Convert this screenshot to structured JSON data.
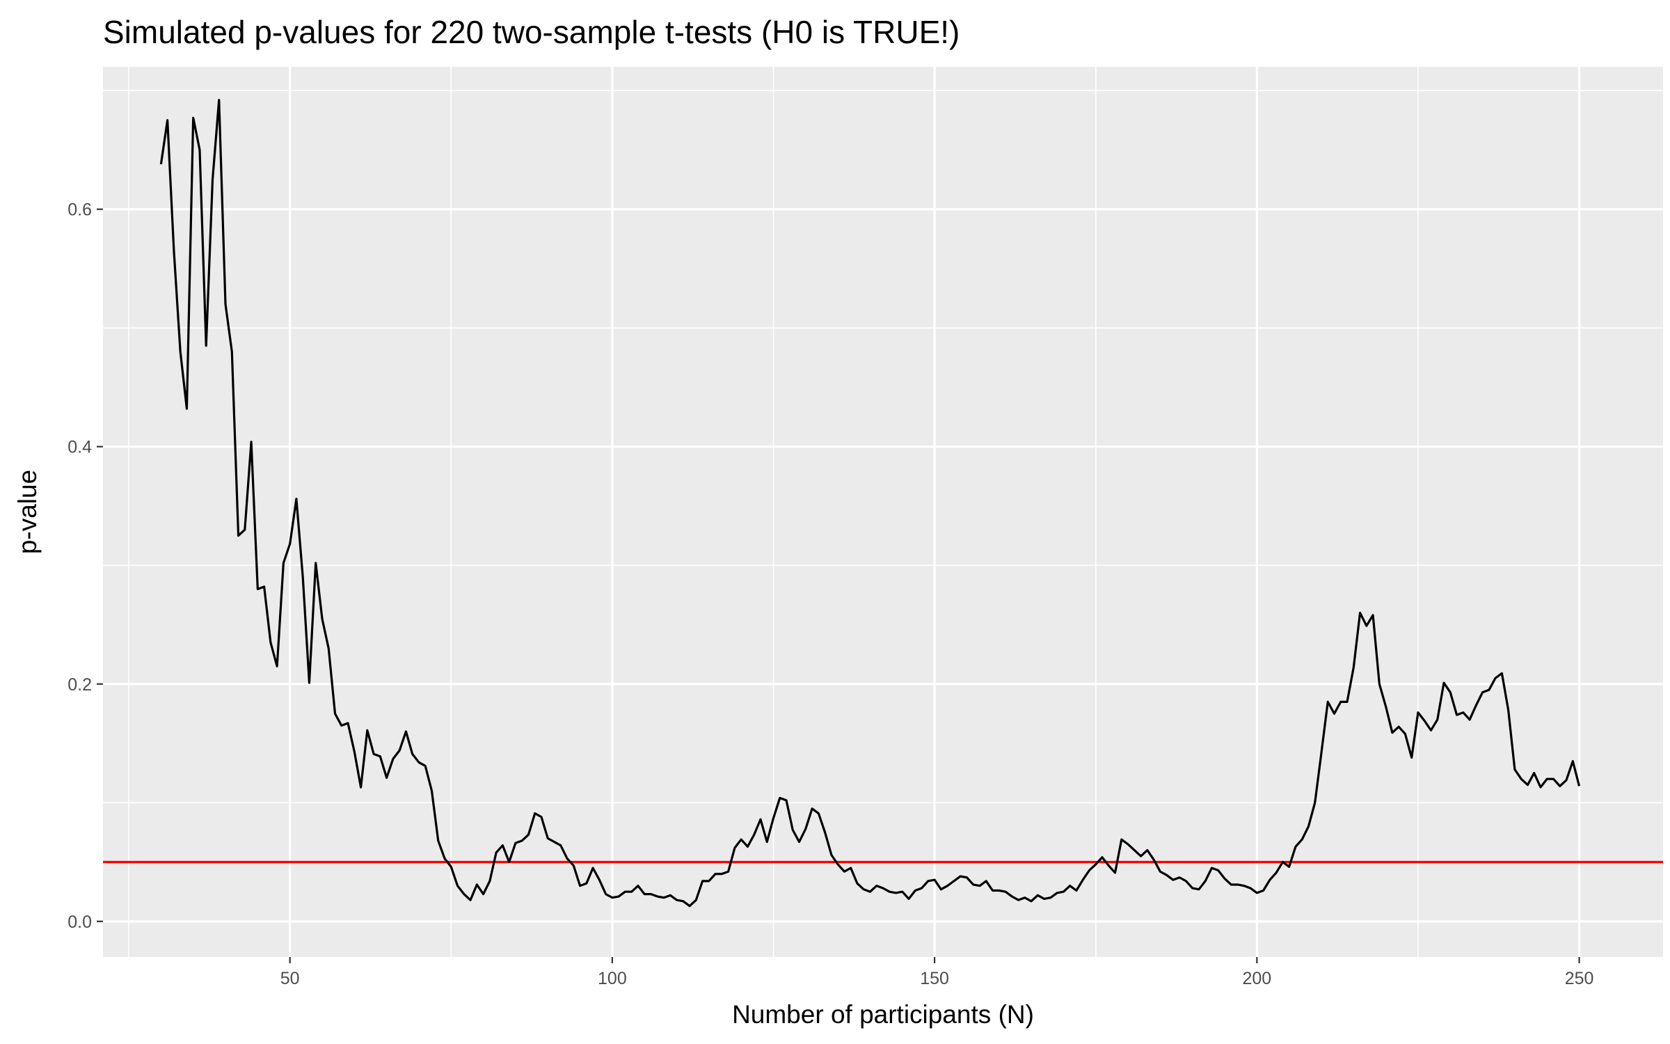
{
  "chart_data": {
    "type": "line",
    "title": "Simulated p-values for 220 two-sample t-tests (H0 is TRUE!)",
    "xlabel": "Number of participants (N)",
    "ylabel": "p-value",
    "xlim": [
      21,
      263
    ],
    "ylim": [
      -0.03,
      0.72
    ],
    "xticks": [
      50,
      100,
      150,
      200,
      250
    ],
    "xtick_labels": [
      "50",
      "100",
      "150",
      "200",
      "250"
    ],
    "yticks": [
      0.0,
      0.2,
      0.4,
      0.6
    ],
    "ytick_labels": [
      "0.0",
      "0.2",
      "0.4",
      "0.6"
    ],
    "grid": true,
    "legend": "none",
    "colors": {
      "panel": "#ebebeb",
      "grid": "#ffffff",
      "line": "#000000",
      "reference": "#ff0000"
    },
    "reference_line": {
      "axis": "y",
      "value": 0.05
    },
    "series": [
      {
        "x": [
          30,
          31,
          32,
          33,
          34,
          35,
          36,
          37,
          38,
          39,
          40,
          41,
          42,
          43,
          44,
          45,
          46,
          47,
          48,
          49,
          50,
          51,
          52,
          53,
          54,
          55,
          56,
          57,
          58,
          59,
          60,
          61,
          62,
          63,
          64,
          65,
          66,
          67,
          68,
          69,
          70,
          71,
          72,
          73,
          74,
          75,
          76,
          77,
          78,
          79,
          80,
          81,
          82,
          83,
          84,
          85,
          86,
          87,
          88,
          89,
          90,
          91,
          92,
          93,
          94,
          95,
          96,
          97,
          98,
          99,
          100,
          101,
          102,
          103,
          104,
          105,
          106,
          107,
          108,
          109,
          110,
          111,
          112,
          113,
          114,
          115,
          116,
          117,
          118,
          119,
          120,
          121,
          122,
          123,
          124,
          125,
          126,
          127,
          128,
          129,
          130,
          131,
          132,
          133,
          134,
          135,
          136,
          137,
          138,
          139,
          140,
          141,
          142,
          143,
          144,
          145,
          146,
          147,
          148,
          149,
          150,
          151,
          152,
          153,
          154,
          155,
          156,
          157,
          158,
          159,
          160,
          161,
          162,
          163,
          164,
          165,
          166,
          167,
          168,
          169,
          170,
          171,
          172,
          173,
          174,
          175,
          176,
          177,
          178,
          179,
          180,
          181,
          182,
          183,
          184,
          185,
          186,
          187,
          188,
          189,
          190,
          191,
          192,
          193,
          194,
          195,
          196,
          197,
          198,
          199,
          200,
          201,
          202,
          203,
          204,
          205,
          206,
          207,
          208,
          209,
          210,
          211,
          212,
          213,
          214,
          215,
          216,
          217,
          218,
          219,
          220,
          221,
          222,
          223,
          224,
          225,
          226,
          227,
          228,
          229,
          230,
          231,
          232,
          233,
          234,
          235,
          236,
          237,
          238,
          239,
          240,
          241,
          242,
          243,
          244,
          245,
          246,
          247,
          248,
          249,
          250
        ],
        "y": [
          0.638,
          0.675,
          0.565,
          0.48,
          0.432,
          0.677,
          0.65,
          0.485,
          0.625,
          0.692,
          0.52,
          0.48,
          0.325,
          0.33,
          0.404,
          0.28,
          0.282,
          0.235,
          0.215,
          0.302,
          0.318,
          0.356,
          0.29,
          0.201,
          0.302,
          0.255,
          0.23,
          0.175,
          0.165,
          0.167,
          0.143,
          0.113,
          0.161,
          0.141,
          0.139,
          0.121,
          0.137,
          0.144,
          0.16,
          0.141,
          0.134,
          0.131,
          0.11,
          0.068,
          0.053,
          0.046,
          0.03,
          0.023,
          0.018,
          0.031,
          0.023,
          0.034,
          0.058,
          0.064,
          0.05,
          0.066,
          0.068,
          0.073,
          0.091,
          0.088,
          0.07,
          0.067,
          0.064,
          0.053,
          0.047,
          0.03,
          0.032,
          0.045,
          0.035,
          0.023,
          0.02,
          0.021,
          0.025,
          0.025,
          0.03,
          0.023,
          0.023,
          0.021,
          0.02,
          0.022,
          0.018,
          0.017,
          0.013,
          0.018,
          0.034,
          0.034,
          0.04,
          0.04,
          0.042,
          0.062,
          0.069,
          0.063,
          0.073,
          0.086,
          0.067,
          0.087,
          0.104,
          0.102,
          0.077,
          0.067,
          0.078,
          0.095,
          0.091,
          0.075,
          0.056,
          0.048,
          0.042,
          0.045,
          0.032,
          0.027,
          0.025,
          0.03,
          0.028,
          0.025,
          0.024,
          0.025,
          0.019,
          0.026,
          0.028,
          0.034,
          0.035,
          0.027,
          0.03,
          0.034,
          0.038,
          0.037,
          0.031,
          0.03,
          0.034,
          0.026,
          0.026,
          0.025,
          0.021,
          0.018,
          0.02,
          0.017,
          0.022,
          0.019,
          0.02,
          0.024,
          0.025,
          0.03,
          0.026,
          0.035,
          0.043,
          0.048,
          0.054,
          0.047,
          0.041,
          0.069,
          0.065,
          0.06,
          0.055,
          0.06,
          0.052,
          0.042,
          0.039,
          0.035,
          0.037,
          0.034,
          0.028,
          0.027,
          0.034,
          0.045,
          0.043,
          0.036,
          0.031,
          0.031,
          0.03,
          0.028,
          0.024,
          0.026,
          0.035,
          0.041,
          0.05,
          0.046,
          0.063,
          0.069,
          0.08,
          0.1,
          0.142,
          0.185,
          0.175,
          0.185,
          0.185,
          0.214,
          0.26,
          0.249,
          0.258,
          0.2,
          0.181,
          0.159,
          0.164,
          0.158,
          0.138,
          0.176,
          0.169,
          0.161,
          0.17,
          0.201,
          0.193,
          0.174,
          0.176,
          0.17,
          0.182,
          0.193,
          0.195,
          0.205,
          0.209,
          0.178,
          0.128,
          0.12,
          0.115,
          0.125,
          0.113,
          0.12,
          0.12,
          0.114,
          0.119,
          0.135,
          0.114
        ]
      }
    ]
  }
}
